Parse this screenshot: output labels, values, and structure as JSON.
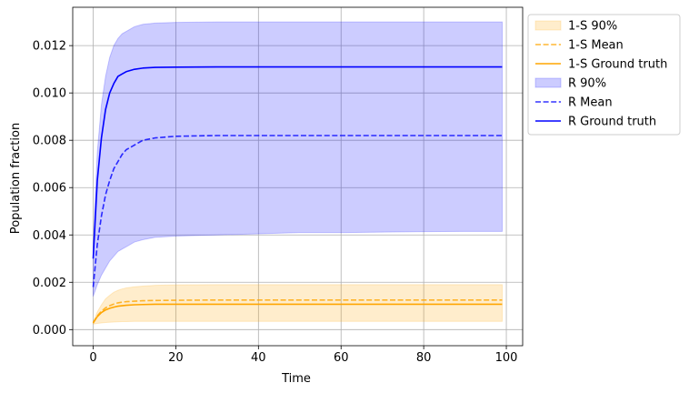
{
  "chart_data": {
    "type": "line",
    "title": "",
    "xlabel": "Time",
    "ylabel": "Population fraction",
    "xlim": [
      -4.95,
      103.95
    ],
    "ylim": [
      -0.00068,
      0.01362
    ],
    "xticks": [
      0,
      20,
      40,
      60,
      80,
      100
    ],
    "xtick_labels": [
      "0",
      "20",
      "40",
      "60",
      "80",
      "100"
    ],
    "yticks": [
      0.0,
      0.002,
      0.004,
      0.006,
      0.008,
      0.01,
      0.012
    ],
    "ytick_labels": [
      "0.000",
      "0.002",
      "0.004",
      "0.006",
      "0.008",
      "0.010",
      "0.012"
    ],
    "grid": true,
    "legend_position": "outside upper right",
    "x": [
      0,
      1,
      2,
      3,
      4,
      5,
      6,
      7,
      8,
      10,
      12,
      15,
      20,
      30,
      40,
      50,
      60,
      70,
      80,
      90,
      99
    ],
    "series": [
      {
        "name": "1-S 90%",
        "kind": "band",
        "color": "#ffa500",
        "lower": [
          0.00023,
          0.00026,
          0.00028,
          0.0003,
          0.00031,
          0.00032,
          0.00033,
          0.00034,
          0.00034,
          0.00035,
          0.00035,
          0.00035,
          0.00035,
          0.00035,
          0.00035,
          0.00035,
          0.00035,
          0.00035,
          0.00035,
          0.00035,
          0.00035
        ],
        "upper": [
          0.0003,
          0.00075,
          0.00105,
          0.0013,
          0.00145,
          0.00158,
          0.00166,
          0.00172,
          0.00176,
          0.00181,
          0.00184,
          0.00187,
          0.00189,
          0.0019,
          0.0019,
          0.0019,
          0.0019,
          0.0019,
          0.0019,
          0.0019,
          0.0019
        ]
      },
      {
        "name": "1-S Mean",
        "kind": "line",
        "dash": true,
        "color": "#ffa500",
        "values": [
          0.0003,
          0.00058,
          0.00078,
          0.00092,
          0.00101,
          0.00108,
          0.00113,
          0.00116,
          0.00118,
          0.0012,
          0.00122,
          0.00123,
          0.00124,
          0.00125,
          0.00125,
          0.00125,
          0.00125,
          0.00125,
          0.00125,
          0.00125,
          0.00125
        ]
      },
      {
        "name": "1-S Ground truth",
        "kind": "line",
        "dash": false,
        "color": "#ffa500",
        "values": [
          0.00028,
          0.00055,
          0.00072,
          0.00083,
          0.0009,
          0.00095,
          0.00099,
          0.00101,
          0.00103,
          0.00105,
          0.00106,
          0.00107,
          0.00107,
          0.00107,
          0.00107,
          0.00107,
          0.00107,
          0.00107,
          0.00107,
          0.00107,
          0.00107
        ]
      },
      {
        "name": "R 90%",
        "kind": "band",
        "color": "#0000ff",
        "lower": [
          0.0014,
          0.0019,
          0.0023,
          0.0026,
          0.0029,
          0.0031,
          0.0033,
          0.0034,
          0.0035,
          0.0037,
          0.0038,
          0.0039,
          0.00395,
          0.004,
          0.00405,
          0.0041,
          0.0041,
          0.00412,
          0.00414,
          0.00415,
          0.00415
        ],
        "upper": [
          0.0037,
          0.0075,
          0.0095,
          0.0107,
          0.0115,
          0.012,
          0.0123,
          0.0125,
          0.0126,
          0.0128,
          0.0129,
          0.01295,
          0.01298,
          0.013,
          0.013,
          0.013,
          0.013,
          0.013,
          0.013,
          0.013,
          0.013
        ]
      },
      {
        "name": "R Mean",
        "kind": "line",
        "dash": true,
        "color": "#0000ff",
        "values": [
          0.0018,
          0.0036,
          0.0048,
          0.0057,
          0.0063,
          0.0068,
          0.0071,
          0.0074,
          0.0076,
          0.0078,
          0.008,
          0.0081,
          0.00817,
          0.0082,
          0.0082,
          0.0082,
          0.0082,
          0.0082,
          0.0082,
          0.0082,
          0.0082
        ]
      },
      {
        "name": "R Ground truth",
        "kind": "line",
        "dash": false,
        "color": "#0000ff",
        "values": [
          0.003,
          0.0063,
          0.0081,
          0.0093,
          0.01,
          0.0104,
          0.0107,
          0.0108,
          0.0109,
          0.011,
          0.01105,
          0.01108,
          0.01109,
          0.0111,
          0.0111,
          0.0111,
          0.0111,
          0.0111,
          0.0111,
          0.0111,
          0.0111
        ]
      }
    ]
  }
}
